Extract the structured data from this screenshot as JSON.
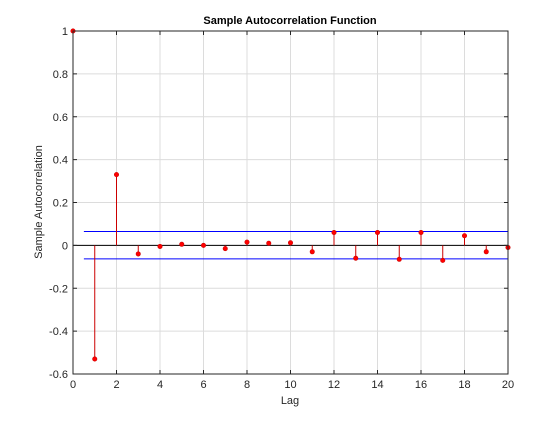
{
  "chart_data": {
    "type": "stem",
    "title": "Sample Autocorrelation Function",
    "xlabel": "Lag",
    "ylabel": "Sample Autocorrelation",
    "xlim": [
      0,
      20
    ],
    "ylim": [
      -0.6,
      1
    ],
    "grid": true,
    "x": [
      0,
      1,
      2,
      3,
      4,
      5,
      6,
      7,
      8,
      9,
      10,
      11,
      12,
      13,
      14,
      15,
      16,
      17,
      18,
      19,
      20
    ],
    "values": [
      1.0,
      -0.53,
      0.33,
      -0.04,
      -0.005,
      0.005,
      0.0,
      -0.015,
      0.015,
      0.01,
      0.012,
      -0.03,
      0.06,
      -0.06,
      0.06,
      -0.065,
      0.06,
      -0.07,
      0.045,
      -0.03,
      -0.01
    ],
    "confidence_bounds": [
      0.065,
      -0.063
    ],
    "x_ticks": [
      "0",
      "2",
      "4",
      "6",
      "8",
      "10",
      "12",
      "14",
      "16",
      "18",
      "20"
    ],
    "y_ticks": [
      "-0.6",
      "-0.4",
      "-0.2",
      "0",
      "0.2",
      "0.4",
      "0.6",
      "0.8",
      "1"
    ],
    "colors": {
      "stem": "#cc0000",
      "marker": "#ff0000",
      "bounds": "#0000ff",
      "axis": "#262626",
      "grid": "#dcdcdc"
    }
  }
}
